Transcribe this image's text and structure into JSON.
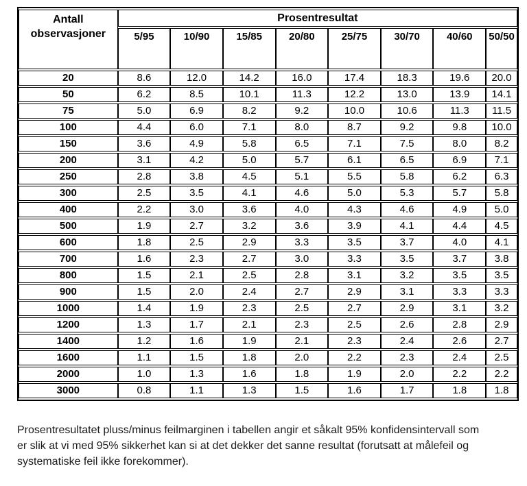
{
  "table": {
    "header": {
      "obs_label": "Antall observasjoner",
      "group_label": "Prosentresultat",
      "columns": [
        "5/95",
        "10/90",
        "15/85",
        "20/80",
        "25/75",
        "30/70",
        "40/60",
        "50/50"
      ]
    },
    "rows": [
      {
        "n": "20",
        "values": [
          "8.6",
          "12.0",
          "14.2",
          "16.0",
          "17.4",
          "18.3",
          "19.6",
          "20.0"
        ]
      },
      {
        "n": "50",
        "values": [
          "6.2",
          "8.5",
          "10.1",
          "11.3",
          "12.2",
          "13.0",
          "13.9",
          "14.1"
        ]
      },
      {
        "n": "75",
        "values": [
          "5.0",
          "6.9",
          "8.2",
          "9.2",
          "10.0",
          "10.6",
          "11.3",
          "11.5"
        ]
      },
      {
        "n": "100",
        "values": [
          "4.4",
          "6.0",
          "7.1",
          "8.0",
          "8.7",
          "9.2",
          "9.8",
          "10.0"
        ]
      },
      {
        "n": "150",
        "values": [
          "3.6",
          "4.9",
          "5.8",
          "6.5",
          "7.1",
          "7.5",
          "8.0",
          "8.2"
        ]
      },
      {
        "n": "200",
        "values": [
          "3.1",
          "4.2",
          "5.0",
          "5.7",
          "6.1",
          "6.5",
          "6.9",
          "7.1"
        ]
      },
      {
        "n": "250",
        "values": [
          "2.8",
          "3.8",
          "4.5",
          "5.1",
          "5.5",
          "5.8",
          "6.2",
          "6.3"
        ]
      },
      {
        "n": "300",
        "values": [
          "2.5",
          "3.5",
          "4.1",
          "4.6",
          "5.0",
          "5.3",
          "5.7",
          "5.8"
        ]
      },
      {
        "n": "400",
        "values": [
          "2.2",
          "3.0",
          "3.6",
          "4.0",
          "4.3",
          "4.6",
          "4.9",
          "5.0"
        ]
      },
      {
        "n": "500",
        "values": [
          "1.9",
          "2.7",
          "3.2",
          "3.6",
          "3.9",
          "4.1",
          "4.4",
          "4.5"
        ]
      },
      {
        "n": "600",
        "values": [
          "1.8",
          "2.5",
          "2.9",
          "3.3",
          "3.5",
          "3.7",
          "4.0",
          "4.1"
        ]
      },
      {
        "n": "700",
        "values": [
          "1.6",
          "2.3",
          "2.7",
          "3.0",
          "3.3",
          "3.5",
          "3.7",
          "3.8"
        ]
      },
      {
        "n": "800",
        "values": [
          "1.5",
          "2.1",
          "2.5",
          "2.8",
          "3.1",
          "3.2",
          "3.5",
          "3.5"
        ]
      },
      {
        "n": "900",
        "values": [
          "1.5",
          "2.0",
          "2.4",
          "2.7",
          "2.9",
          "3.1",
          "3.3",
          "3.3"
        ]
      },
      {
        "n": "1000",
        "values": [
          "1.4",
          "1.9",
          "2.3",
          "2.5",
          "2.7",
          "2.9",
          "3.1",
          "3.2"
        ]
      },
      {
        "n": "1200",
        "values": [
          "1.3",
          "1.7",
          "2.1",
          "2.3",
          "2.5",
          "2.6",
          "2.8",
          "2.9"
        ]
      },
      {
        "n": "1400",
        "values": [
          "1.2",
          "1.6",
          "1.9",
          "2.1",
          "2.3",
          "2.4",
          "2.6",
          "2.7"
        ]
      },
      {
        "n": "1600",
        "values": [
          "1.1",
          "1.5",
          "1.8",
          "2.0",
          "2.2",
          "2.3",
          "2.4",
          "2.5"
        ]
      },
      {
        "n": "2000",
        "values": [
          "1.0",
          "1.3",
          "1.6",
          "1.8",
          "1.9",
          "2.0",
          "2.2",
          "2.2"
        ]
      },
      {
        "n": "3000",
        "values": [
          "0.8",
          "1.1",
          "1.3",
          "1.5",
          "1.6",
          "1.7",
          "1.8",
          "1.8"
        ]
      }
    ]
  },
  "footer": {
    "text": "Prosentresultatet pluss/minus feilmarginen i tabellen angir et såkalt 95% konfidensintervall som er slik at vi med 95% sikkerhet kan si at det dekker det sanne resultat (forutsatt at målefeil og systematiske feil ikke forekommer)."
  }
}
